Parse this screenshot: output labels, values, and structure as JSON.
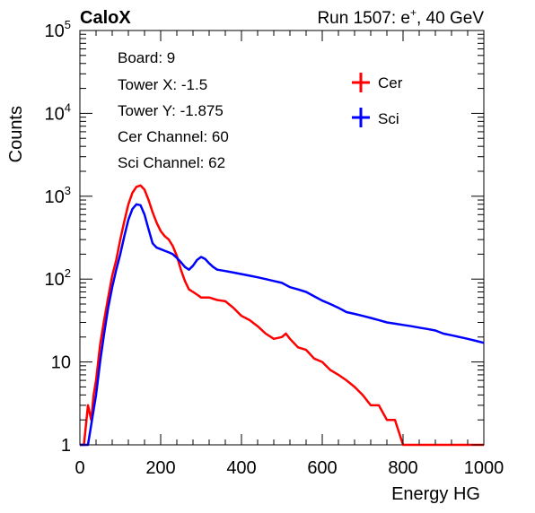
{
  "chart_data": {
    "type": "line",
    "title_left": "CaloX",
    "title_right": "Run 1507: e",
    "title_right_sup": "+",
    "title_right_tail": ", 40 GeV",
    "xlabel": "Energy HG",
    "ylabel": "Counts",
    "xlim": [
      0,
      1000
    ],
    "ylim": [
      1,
      100000
    ],
    "y_scale": "log",
    "grid": false,
    "x_ticks": [
      "0",
      "200",
      "400",
      "600",
      "800",
      "1000"
    ],
    "y_tick_labels": [
      {
        "value": 1,
        "text": "1"
      },
      {
        "value": 10,
        "text": "10"
      },
      {
        "value": 100,
        "base": "10",
        "exp": "2"
      },
      {
        "value": 1000,
        "base": "10",
        "exp": "3"
      },
      {
        "value": 10000,
        "base": "10",
        "exp": "4"
      },
      {
        "value": 100000,
        "base": "10",
        "exp": "5"
      }
    ],
    "info_box": [
      "Board: 9",
      "Tower X: -1.5",
      "Tower Y: -1.875",
      "Cer Channel: 60",
      "Sci Channel: 62"
    ],
    "legend_position": "top-right",
    "series": [
      {
        "name": "Cer",
        "color": "#ff0000",
        "points": [
          [
            0,
            1
          ],
          [
            10,
            1
          ],
          [
            20,
            3
          ],
          [
            28,
            2
          ],
          [
            34,
            4
          ],
          [
            40,
            6
          ],
          [
            50,
            16
          ],
          [
            60,
            32
          ],
          [
            70,
            60
          ],
          [
            80,
            110
          ],
          [
            90,
            170
          ],
          [
            100,
            300
          ],
          [
            110,
            500
          ],
          [
            120,
            800
          ],
          [
            130,
            1100
          ],
          [
            140,
            1300
          ],
          [
            150,
            1350
          ],
          [
            160,
            1200
          ],
          [
            170,
            900
          ],
          [
            180,
            640
          ],
          [
            190,
            480
          ],
          [
            200,
            380
          ],
          [
            210,
            330
          ],
          [
            220,
            300
          ],
          [
            230,
            250
          ],
          [
            240,
            190
          ],
          [
            250,
            130
          ],
          [
            260,
            95
          ],
          [
            270,
            75
          ],
          [
            280,
            70
          ],
          [
            290,
            65
          ],
          [
            300,
            60
          ],
          [
            320,
            60
          ],
          [
            340,
            56
          ],
          [
            360,
            54
          ],
          [
            380,
            45
          ],
          [
            400,
            36
          ],
          [
            420,
            32
          ],
          [
            440,
            27
          ],
          [
            460,
            22
          ],
          [
            480,
            19
          ],
          [
            500,
            20
          ],
          [
            510,
            22
          ],
          [
            520,
            19
          ],
          [
            540,
            15
          ],
          [
            560,
            14
          ],
          [
            580,
            11
          ],
          [
            600,
            10
          ],
          [
            620,
            8
          ],
          [
            640,
            7
          ],
          [
            660,
            6
          ],
          [
            680,
            5
          ],
          [
            700,
            4
          ],
          [
            720,
            3
          ],
          [
            740,
            3
          ],
          [
            760,
            2
          ],
          [
            780,
            2
          ],
          [
            800,
            1
          ],
          [
            1000,
            1
          ]
        ]
      },
      {
        "name": "Sci",
        "color": "#0000ff",
        "points": [
          [
            0,
            1
          ],
          [
            20,
            1
          ],
          [
            30,
            2
          ],
          [
            40,
            4
          ],
          [
            50,
            10
          ],
          [
            60,
            22
          ],
          [
            70,
            45
          ],
          [
            80,
            80
          ],
          [
            90,
            130
          ],
          [
            100,
            200
          ],
          [
            110,
            330
          ],
          [
            120,
            520
          ],
          [
            130,
            700
          ],
          [
            140,
            800
          ],
          [
            150,
            780
          ],
          [
            160,
            600
          ],
          [
            170,
            400
          ],
          [
            180,
            270
          ],
          [
            190,
            240
          ],
          [
            200,
            230
          ],
          [
            210,
            220
          ],
          [
            220,
            210
          ],
          [
            230,
            200
          ],
          [
            240,
            180
          ],
          [
            250,
            160
          ],
          [
            260,
            140
          ],
          [
            270,
            130
          ],
          [
            280,
            145
          ],
          [
            290,
            170
          ],
          [
            300,
            185
          ],
          [
            310,
            175
          ],
          [
            320,
            155
          ],
          [
            330,
            140
          ],
          [
            340,
            130
          ],
          [
            360,
            125
          ],
          [
            380,
            120
          ],
          [
            400,
            115
          ],
          [
            420,
            110
          ],
          [
            440,
            105
          ],
          [
            460,
            100
          ],
          [
            480,
            95
          ],
          [
            500,
            90
          ],
          [
            520,
            80
          ],
          [
            540,
            75
          ],
          [
            560,
            70
          ],
          [
            580,
            62
          ],
          [
            600,
            55
          ],
          [
            620,
            50
          ],
          [
            640,
            45
          ],
          [
            660,
            40
          ],
          [
            680,
            38
          ],
          [
            700,
            36
          ],
          [
            720,
            34
          ],
          [
            740,
            32
          ],
          [
            760,
            30
          ],
          [
            780,
            29
          ],
          [
            800,
            28
          ],
          [
            820,
            27
          ],
          [
            840,
            26
          ],
          [
            860,
            25
          ],
          [
            880,
            24
          ],
          [
            900,
            22
          ],
          [
            920,
            21
          ],
          [
            940,
            20
          ],
          [
            960,
            19
          ],
          [
            980,
            18
          ],
          [
            1000,
            17
          ]
        ]
      }
    ]
  }
}
